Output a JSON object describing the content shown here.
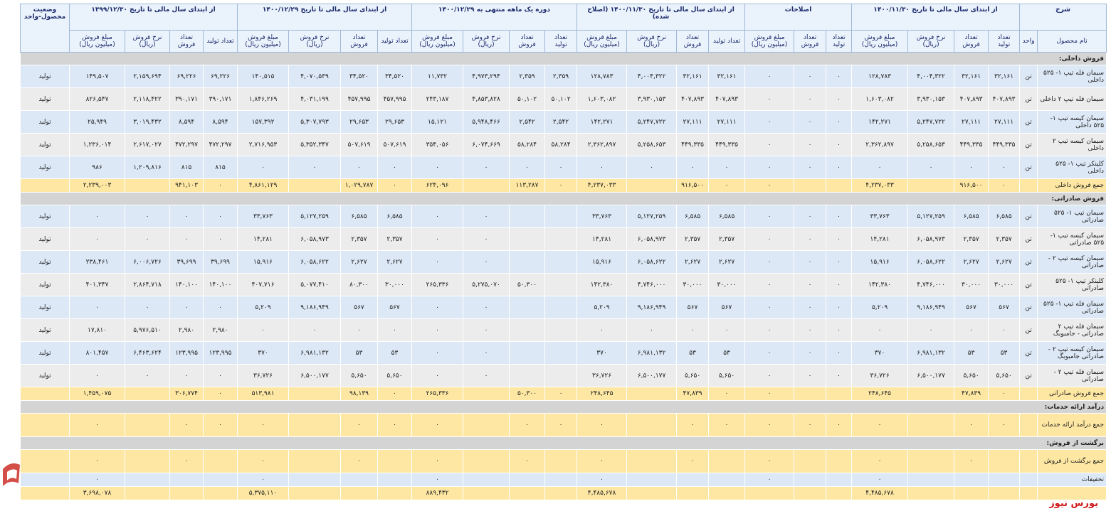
{
  "table": {
    "groups": [
      "شرح",
      "از ابتدای سال مالی تا تاریخ ۱۴۰۰/۱۱/۳۰",
      "اصلاحات",
      "از ابتدای سال مالی تا تاریخ ۱۴۰۰/۱۱/۳۰ (اصلاح شده)",
      "دوره یک ماهه منتهی به ۱۴۰۰/۱۲/۲۹",
      "از ابتدای سال مالی تا تاریخ ۱۴۰۰/۱۲/۲۹",
      "از ابتدای سال مالی تا تاریخ ۱۳۹۹/۱۲/۳۰"
    ],
    "status_header": "وضعیت محصول-واحد",
    "subheaders": [
      "نام محصول",
      "واحد",
      "تعداد تولید",
      "تعداد فروش",
      "نرخ فروش (ریال)",
      "مبلغ فروش (میلیون ریال)",
      "تعداد تولید",
      "تعداد فروش",
      "مبلغ فروش (میلیون ریال)",
      "تعداد تولید",
      "تعداد فروش",
      "نرخ فروش (ریال)",
      "مبلغ فروش (میلیون ریال)",
      "تعداد تولید",
      "تعداد فروش",
      "نرخ فروش (ریال)",
      "مبلغ فروش (میلیون ریال)",
      "تعداد تولید",
      "تعداد فروش",
      "نرخ فروش (ریال)",
      "مبلغ فروش (میلیون ریال)",
      "تعداد تولید",
      "تعداد فروش",
      "نرخ فروش (ریال)",
      "مبلغ فروش (میلیون ریال)"
    ],
    "sections": [
      {
        "title": "فروش داخلی:",
        "rows": [
          [
            "سیمان فله تیپ ۱- ۵۲۵ داخلی",
            "تن",
            "۳۲,۱۶۱",
            "۳۲,۱۶۱",
            "۴,۰۰۴,۳۲۲",
            "۱۲۸,۷۸۳",
            "۰",
            "۰",
            "۰",
            "۳۲,۱۶۱",
            "۳۲,۱۶۱",
            "۴,۰۰۴,۳۲۲",
            "۱۲۸,۷۸۳",
            "۲,۳۵۹",
            "۲,۳۵۹",
            "۴,۹۷۳,۲۹۴",
            "۱۱,۷۳۲",
            "۳۴,۵۲۰",
            "۳۴,۵۲۰",
            "۴,۰۷۰,۵۳۹",
            "۱۴۰,۵۱۵",
            "۶۹,۲۲۶",
            "۶۹,۲۲۶",
            "۲,۱۵۹,۶۹۴",
            "۱۴۹,۵۰۷",
            "تولید"
          ],
          [
            "سیمان فله تیپ ۲ داخلی",
            "تن",
            "۴۰۷,۸۹۳",
            "۴۰۷,۸۹۳",
            "۳,۹۳۰,۱۵۳",
            "۱,۶۰۳,۰۸۲",
            "۰",
            "۰",
            "۰",
            "۴۰۷,۸۹۳",
            "۴۰۷,۸۹۳",
            "۳,۹۳۰,۱۵۳",
            "۱,۶۰۳,۰۸۲",
            "۵۰,۱۰۲",
            "۵۰,۱۰۲",
            "۴,۸۵۳,۸۲۸",
            "۲۴۳,۱۸۷",
            "۴۵۷,۹۹۵",
            "۴۵۷,۹۹۵",
            "۴,۰۳۱,۱۹۹",
            "۱,۸۴۶,۲۶۹",
            "۳۹۰,۱۷۱",
            "۳۹۰,۱۷۱",
            "۲,۱۱۸,۴۲۲",
            "۸۲۶,۵۴۷",
            "تولید"
          ],
          [
            "سیمان کیسه تیپ ۱- ۵۲۵ داخلی",
            "تن",
            "۲۷,۱۱۱",
            "۲۷,۱۱۱",
            "۵,۲۴۷,۷۲۲",
            "۱۴۲,۲۷۱",
            "۰",
            "۰",
            "۰",
            "۲۷,۱۱۱",
            "۲۷,۱۱۱",
            "۵,۲۴۷,۷۲۲",
            "۱۴۲,۲۷۱",
            "۲,۵۴۲",
            "۲,۵۴۲",
            "۵,۹۴۸,۴۶۶",
            "۱۵,۱۲۱",
            "۲۹,۶۵۳",
            "۲۹,۶۵۳",
            "۵,۳۰۷,۷۹۳",
            "۱۵۷,۳۹۲",
            "۸,۵۹۴",
            "۸,۵۹۴",
            "۳,۰۱۹,۴۳۲",
            "۲۵,۹۴۹",
            "تولید"
          ],
          [
            "سیمان کیسه تیپ ۲ داخلی",
            "تن",
            "۴۴۹,۳۳۵",
            "۴۴۹,۳۳۵",
            "۵,۲۵۸,۶۵۳",
            "۲,۳۶۲,۸۹۷",
            "۰",
            "۰",
            "۰",
            "۴۴۹,۳۳۵",
            "۴۴۹,۳۳۵",
            "۵,۲۵۸,۶۵۳",
            "۲,۳۶۲,۸۹۷",
            "۵۸,۲۸۴",
            "۵۸,۲۸۴",
            "۶,۰۷۴,۶۶۹",
            "۳۵۴,۰۵۶",
            "۵۰۷,۶۱۹",
            "۵۰۷,۶۱۹",
            "۵,۳۵۲,۳۴۷",
            "۲,۷۱۶,۹۵۳",
            "۴۷۲,۲۹۷",
            "۴۷۲,۲۹۷",
            "۲,۶۱۷,۰۲۷",
            "۱,۲۳۶,۰۱۴",
            "تولید"
          ],
          [
            "کلینکر تیپ ۱- ۵۲۵ داخلی",
            "تن",
            "۰",
            "۰",
            "۰",
            "۰",
            "۰",
            "۰",
            "۰",
            "۰",
            "۰",
            "۰",
            "۰",
            "۰",
            "۰",
            "۰",
            "۰",
            "۰",
            "۰",
            "۰",
            "۰",
            "۸۱۵",
            "۸۱۵",
            "۱,۲۰۹,۸۱۶",
            "۹۸۶",
            "تولید"
          ]
        ],
        "total": [
          "جمع فروش داخلی",
          null,
          "۰",
          "۹۱۶,۵۰۰",
          null,
          "۴,۲۳۷,۰۳۳",
          null,
          null,
          "۰",
          "۰",
          "۹۱۶,۵۰۰",
          null,
          "۴,۲۳۷,۰۳۳",
          "۰",
          "۱۱۳,۲۸۷",
          null,
          "۶۲۴,۰۹۶",
          "۰",
          "۱,۰۲۹,۷۸۷",
          null,
          "۴,۸۶۱,۱۲۹",
          "۰",
          "۹۴۱,۱۰۳",
          null,
          "۲,۲۳۹,۰۰۳",
          null
        ]
      },
      {
        "title": "فروش صادراتی:",
        "rows": [
          [
            "سیمان تیپ ۱- ۵۲۵ صادراتی",
            "تن",
            "۶,۵۸۵",
            "۶,۵۸۵",
            "۵,۱۲۷,۲۵۹",
            "۳۳,۷۶۳",
            "۰",
            "۰",
            "۰",
            "۶,۵۸۵",
            "۶,۵۸۵",
            "۵,۱۲۷,۲۵۹",
            "۳۳,۷۶۳",
            null,
            null,
            "۰",
            "۰",
            "۶,۵۸۵",
            "۶,۵۸۵",
            "۵,۱۲۷,۲۵۹",
            "۳۳,۷۶۳",
            "۰",
            "۰",
            "۰",
            "۰",
            "تولید"
          ],
          [
            "سیمان کیسه تیپ ۱- ۵۲۵ صادراتی",
            "تن",
            "۲,۳۵۷",
            "۲,۳۵۷",
            "۶,۰۵۸,۹۷۳",
            "۱۴,۲۸۱",
            "۰",
            "۰",
            "۰",
            "۲,۳۵۷",
            "۲,۳۵۷",
            "۶,۰۵۸,۹۷۳",
            "۱۴,۲۸۱",
            null,
            null,
            "۰",
            "۰",
            "۲,۳۵۷",
            "۲,۳۵۷",
            "۶,۰۵۸,۹۷۳",
            "۱۴,۲۸۱",
            "۰",
            "۰",
            "۰",
            "۰",
            "تولید"
          ],
          [
            "سیمان کیسه تیپ ۲ - صادراتی",
            "تن",
            "۲,۶۲۷",
            "۲,۶۲۷",
            "۶,۰۵۸,۶۲۲",
            "۱۵,۹۱۶",
            "۰",
            "۰",
            "۰",
            "۲,۶۲۷",
            "۲,۶۲۷",
            "۶,۰۵۸,۶۲۲",
            "۱۵,۹۱۶",
            null,
            null,
            "۰",
            "۰",
            "۲,۶۲۷",
            "۲,۶۲۷",
            "۶,۰۵۸,۶۲۲",
            "۱۵,۹۱۶",
            "۳۹,۶۹۹",
            "۳۹,۶۹۹",
            "۶,۰۰۶,۷۲۶",
            "۲۳۸,۴۶۱",
            "تولید"
          ],
          [
            "کلینکر تیپ ۱- ۵۲۵ صادراتی",
            "تن",
            "۳۰,۰۰۰",
            "۳۰,۰۰۰",
            "۴,۷۴۶,۰۰۰",
            "۱۴۲,۳۸۰",
            "۰",
            "۰",
            "۰",
            "۳۰,۰۰۰",
            "۳۰,۰۰۰",
            "۴,۷۴۶,۰۰۰",
            "۱۴۲,۳۸۰",
            null,
            "۵۰,۳۰۰",
            "۵,۲۷۵,۰۷۰",
            "۲۶۵,۳۳۶",
            "۳۰,۰۰۰",
            "۸۰,۳۰۰",
            "۵,۰۷۷,۴۱۰",
            "۴۰۷,۷۱۶",
            "۱۴۰,۱۰۰",
            "۱۴۰,۱۰۰",
            "۲,۸۶۴,۷۱۸",
            "۴۰۱,۳۴۷",
            "تولید"
          ],
          [
            "سیمان فله تیپ ۱- ۵۲۵ صادراتی",
            "تن",
            "۵۶۷",
            "۵۶۷",
            "۹,۱۸۶,۹۴۹",
            "۵,۲۰۹",
            "۰",
            "۰",
            "۰",
            "۵۶۷",
            "۵۶۷",
            "۹,۱۸۶,۹۴۹",
            "۵,۲۰۹",
            null,
            null,
            "۰",
            "۰",
            "۵۶۷",
            "۵۶۷",
            "۹,۱۸۶,۹۴۹",
            "۵,۲۰۹",
            "۰",
            "۰",
            "۰",
            "۰",
            "تولید"
          ],
          [
            "سیمان فله تیپ ۲ صادراتی - جامبوبگ",
            "تن",
            "۰",
            "۰",
            "۰",
            "۰",
            "۰",
            "۰",
            "۰",
            "۰",
            "۰",
            "۰",
            "۰",
            null,
            null,
            "۰",
            "۰",
            "۰",
            "۰",
            "۰",
            "۰",
            "۲,۹۸۰",
            "۲,۹۸۰",
            "۵,۹۷۶,۵۱۰",
            "۱۷,۸۱۰",
            "تولید"
          ],
          [
            "سیمان کیسه تیپ ۲ - صادراتی جامبوبگ",
            "تن",
            "۵۳",
            "۵۳",
            "۶,۹۸۱,۱۳۲",
            "۳۷۰",
            "۰",
            "۰",
            "۰",
            "۵۳",
            "۵۳",
            "۶,۹۸۱,۱۳۲",
            "۳۷۰",
            null,
            null,
            "۰",
            "۰",
            "۵۳",
            "۵۳",
            "۶,۹۸۱,۱۳۲",
            "۳۷۰",
            "۱۲۳,۹۹۵",
            "۱۲۳,۹۹۵",
            "۶,۴۶۳,۶۲۴",
            "۸۰۱,۴۵۷",
            "تولید"
          ],
          [
            "سیمان فله تیپ ۲ - صادراتی",
            "تن",
            "۵,۶۵۰",
            "۵,۶۵۰",
            "۶,۵۰۰,۱۷۷",
            "۳۶,۷۲۶",
            "۰",
            "۰",
            "۰",
            "۵,۶۵۰",
            "۵,۶۵۰",
            "۶,۵۰۰,۱۷۷",
            "۳۶,۷۲۶",
            null,
            null,
            "۰",
            "۰",
            "۵,۶۵۰",
            "۵,۶۵۰",
            "۶,۵۰۰,۱۷۷",
            "۳۶,۷۲۶",
            "۰",
            "۰",
            "۰",
            "۰",
            "تولید"
          ]
        ],
        "total": [
          "جمع فروش صادراتی",
          null,
          "۰",
          "۴۷,۸۳۹",
          null,
          "۲۴۸,۶۴۵",
          null,
          null,
          "۰",
          "۰",
          "۴۷,۸۳۹",
          null,
          "۲۴۸,۶۴۵",
          "۰",
          "۵۰,۳۰۰",
          null,
          "۲۶۵,۳۳۶",
          "۰",
          "۹۸,۱۳۹",
          null,
          "۵۱۳,۹۸۱",
          "۰",
          "۳۰۶,۷۷۴",
          null,
          "۱,۴۵۹,۰۷۵",
          null
        ]
      },
      {
        "title": "درآمد ارائه خدمات:",
        "rows": [],
        "total": [
          "جمع درآمد ارائه خدمات",
          null,
          "۰",
          "۰",
          null,
          "۰",
          "۰",
          "۰",
          "۰",
          "۰",
          "۰",
          null,
          "۰",
          "۰",
          "۰",
          null,
          "۰",
          "۰",
          "۰",
          null,
          "۰",
          "۰",
          "۰",
          null,
          "۰",
          null
        ]
      },
      {
        "title": "برگشت از فروش:",
        "rows": [],
        "total": [
          "جمع برگشت از فروش",
          null,
          null,
          "۰",
          null,
          "۰",
          null,
          null,
          "۰",
          null,
          "۰",
          null,
          "۰",
          null,
          "۰",
          null,
          "۰",
          null,
          "۰",
          null,
          "۰",
          null,
          "۰",
          null,
          "۰",
          null
        ]
      }
    ],
    "extra_rows": [
      [
        "تخفیفات",
        null,
        null,
        null,
        null,
        "۰",
        null,
        null,
        "۰",
        null,
        null,
        null,
        "۰",
        null,
        null,
        null,
        "۰",
        null,
        null,
        null,
        "۰",
        null,
        null,
        null,
        "۰",
        null
      ]
    ],
    "grand_total": [
      null,
      null,
      null,
      null,
      null,
      "۴,۴۸۵,۶۷۸",
      null,
      null,
      null,
      null,
      null,
      null,
      "۴,۴۸۵,۶۷۸",
      null,
      null,
      null,
      "۸۸۹,۴۳۲",
      null,
      null,
      null,
      "۵,۳۷۵,۱۱۰",
      null,
      null,
      null,
      "۳,۶۹۸,۰۷۸",
      null
    ],
    "watermark": "بورس نیوز"
  }
}
